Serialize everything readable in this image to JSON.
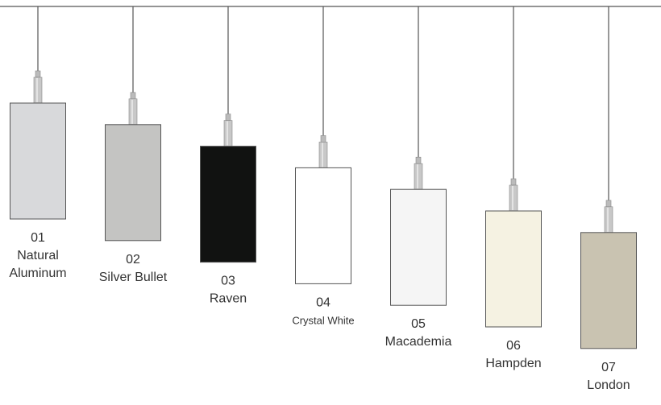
{
  "pendants": [
    {
      "number": "01",
      "name_lines": [
        "Natural",
        "Aluminum"
      ],
      "color": "#d8d9db"
    },
    {
      "number": "02",
      "name_lines": [
        "Silver Bullet"
      ],
      "color": "#c4c4c2"
    },
    {
      "number": "03",
      "name_lines": [
        "Raven"
      ],
      "color": "#111211"
    },
    {
      "number": "04",
      "name_lines": [
        "Crystal White"
      ],
      "color": "#ffffff"
    },
    {
      "number": "05",
      "name_lines": [
        "Macademia"
      ],
      "color": "#f5f5f5"
    },
    {
      "number": "06",
      "name_lines": [
        "Hampden"
      ],
      "color": "#f5f2e2"
    },
    {
      "number": "07",
      "name_lines": [
        "London"
      ],
      "color": "#c9c3b1"
    }
  ]
}
